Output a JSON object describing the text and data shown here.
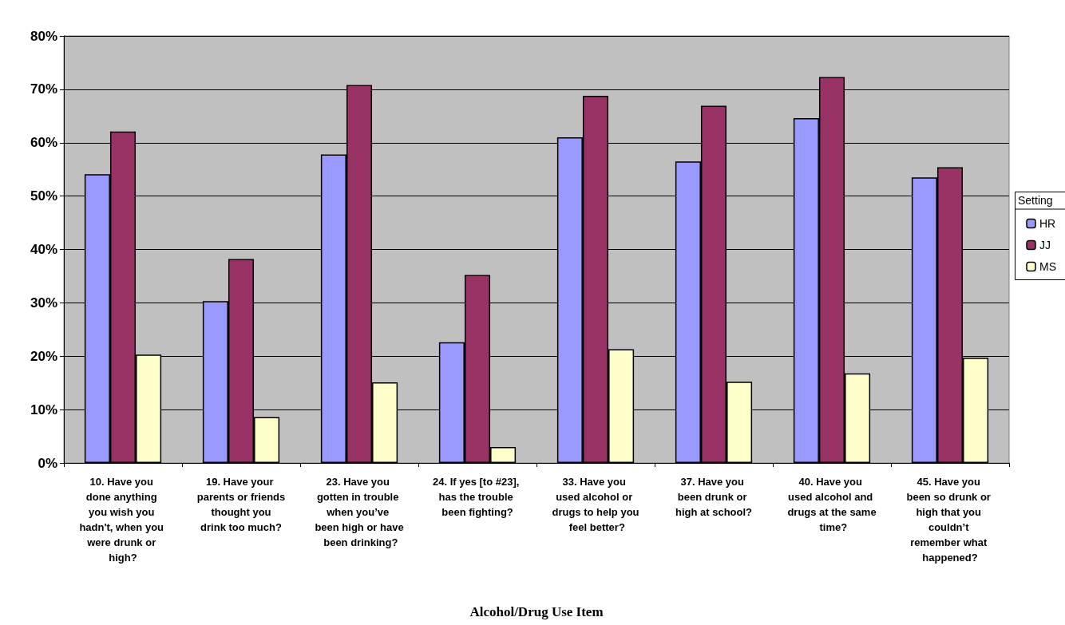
{
  "chart_data": {
    "type": "bar",
    "xlabel": "Alcohol/Drug Use Item",
    "legend_title": "Setting",
    "categories": [
      "10. Have you done anything you wish you hadn't, when you were drunk or high?",
      "19. Have your parents or friends thought you drink too much?",
      "23. Have you gotten in trouble when you’ve been high or have been drinking?",
      "24. If yes [to #23], has the trouble been fighting?",
      "33. Have you used alcohol or drugs to help you feel better?",
      "37. Have you been drunk or high at school?",
      "40. Have you used alcohol and drugs at the same time?",
      "45. Have you been so drunk or high that you couldn’t remember what happened?"
    ],
    "series": [
      {
        "name": "HR",
        "color": "#9999ff",
        "values": [
          54.1,
          30.3,
          57.8,
          22.6,
          61.0,
          56.5,
          64.6,
          53.5
        ]
      },
      {
        "name": "JJ",
        "color": "#993366",
        "values": [
          62.1,
          38.2,
          70.8,
          35.2,
          68.8,
          66.9,
          72.3,
          55.4
        ]
      },
      {
        "name": "MS",
        "color": "#ffffcc",
        "values": [
          20.3,
          8.6,
          15.1,
          3.0,
          21.3,
          15.2,
          16.8,
          19.7
        ]
      }
    ],
    "ylim": [
      0,
      80
    ],
    "yticks": [
      {
        "value": 0,
        "label": "0%"
      },
      {
        "value": 10,
        "label": "10%"
      },
      {
        "value": 20,
        "label": "20%"
      },
      {
        "value": 30,
        "label": "30%"
      },
      {
        "value": 40,
        "label": "40%"
      },
      {
        "value": 50,
        "label": "50%"
      },
      {
        "value": 60,
        "label": "60%"
      },
      {
        "value": 70,
        "label": "70%"
      },
      {
        "value": 80,
        "label": "80%"
      }
    ],
    "grid": "y",
    "legend": "right"
  }
}
